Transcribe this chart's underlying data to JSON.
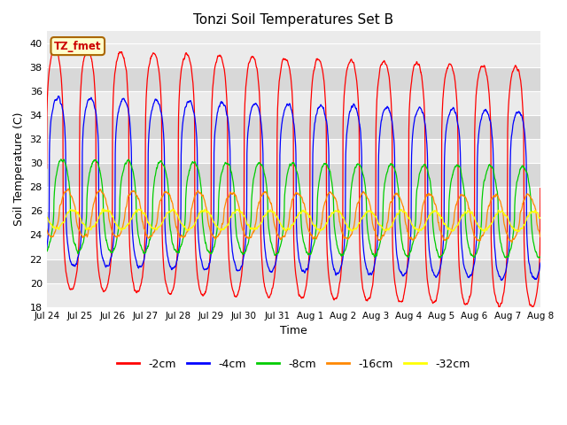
{
  "title": "Tonzi Soil Temperatures Set B",
  "xlabel": "Time",
  "ylabel": "Soil Temperature (C)",
  "ylim": [
    18,
    41
  ],
  "yticks": [
    18,
    20,
    22,
    24,
    26,
    28,
    30,
    32,
    34,
    36,
    38,
    40
  ],
  "xtick_labels": [
    "Jul 24",
    "Jul 25",
    "Jul 26",
    "Jul 27",
    "Jul 28",
    "Jul 29",
    "Jul 30",
    "Jul 31",
    "Aug 1",
    "Aug 2",
    "Aug 3",
    "Aug 4",
    "Aug 5",
    "Aug 6",
    "Aug 7",
    "Aug 8"
  ],
  "colors": {
    "-2cm": "#ff0000",
    "-4cm": "#0000ff",
    "-8cm": "#00cc00",
    "-16cm": "#ff8800",
    "-32cm": "#ffff00"
  },
  "legend_label": "TZ_fmet",
  "bg_light": "#ebebeb",
  "bg_dark": "#d8d8d8",
  "n_days": 15,
  "depths": [
    "-2cm",
    "-4cm",
    "-8cm",
    "-16cm",
    "-32cm"
  ],
  "amplitudes": [
    10.0,
    7.0,
    3.8,
    1.9,
    0.8
  ],
  "means": [
    29.5,
    28.5,
    26.5,
    25.8,
    25.3
  ],
  "phase_shifts": [
    0.0,
    0.08,
    0.22,
    0.38,
    0.55
  ],
  "trend_slopes": [
    -0.1,
    -0.08,
    -0.04,
    -0.025,
    -0.01
  ],
  "sharpness": [
    4.0,
    3.5,
    2.0,
    1.5,
    1.2
  ]
}
